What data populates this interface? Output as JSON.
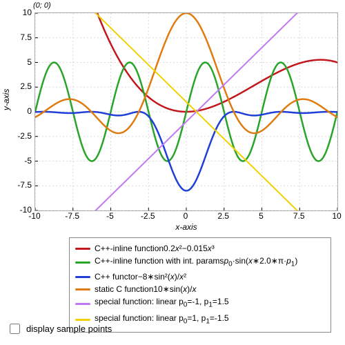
{
  "origin_label": "(0; 0)",
  "axis": {
    "x_label": "x-axis",
    "y_label": "y-axis",
    "xlim": [
      -10,
      10
    ],
    "ylim": [
      -10,
      10
    ],
    "x_ticks": [
      -10,
      -7.5,
      -5,
      -2.5,
      0,
      2.5,
      5,
      7.5,
      10
    ],
    "y_ticks": [
      -10,
      -7.5,
      -5,
      -2.5,
      0,
      2.5,
      5,
      7.5,
      10
    ],
    "grid_color": "#d9d9d9",
    "background": "#ffffff",
    "label_fontsize": 12,
    "type": "line"
  },
  "series": [
    {
      "id": "cubic",
      "color": "#c2171c",
      "width": 2.5,
      "formula": "0.2*x*x - 0.015*x*x*x",
      "label_html": "C++-inline function0.2<i>x</i>&sup2;&minus;0.015<i>x</i>&sup3;"
    },
    {
      "id": "sine_int",
      "color": "#28a428",
      "width": 2.5,
      "formula": "5*Math.sin(x*2.0*Math.PI*0.2)",
      "label_html": "C++-inline function with int. params<i>p</i><sub>0</sub>&middot;sin(<i>x</i>&lowast;2.0&lowast;&pi;&middot;<i>p</i><sub>1</sub>)"
    },
    {
      "id": "functor",
      "color": "#1f3fd6",
      "width": 2.5,
      "formula": "-8*Math.pow(Math.sin(x),2)/(x*x)",
      "label_html": "C++ functor&minus;8&lowast;sin&sup2;(<i>x</i>)/<i>x</i>&sup2;"
    },
    {
      "id": "sinc",
      "color": "#e07b12",
      "width": 2.5,
      "formula": "10*Math.sin(x)/x",
      "label_html": "static C function10&lowast;sin(<i>x</i>)/<i>x</i>"
    },
    {
      "id": "linear_up",
      "color": "#c178f2",
      "width": 2,
      "formula": "-1 + 1.5*x",
      "label_html": "special function: linear p<sub>0</sub>=-1, p<sub>1</sub>=1.5"
    },
    {
      "id": "linear_down",
      "color": "#f2d100",
      "width": 2,
      "formula": "1 - 1.5*x",
      "label_html": "special function: linear p<sub>0</sub>=1, p<sub>1</sub>=-1.5"
    }
  ],
  "checkbox": {
    "label": "display sample points",
    "checked": false
  }
}
